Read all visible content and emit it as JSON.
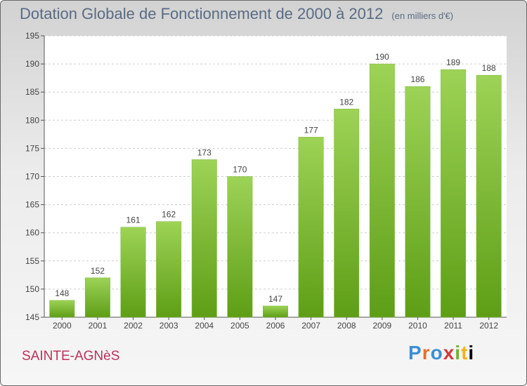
{
  "header": {
    "title": "Dotation Globale de Fonctionnement de 2000 à 2012",
    "subtitle": "(en milliers d'€)"
  },
  "footer": {
    "commune": "SAINTE-AGNèS",
    "brand": [
      "P",
      "r",
      "o",
      "x",
      "i",
      "t",
      "i"
    ]
  },
  "colors": {
    "bar_top": "#9dd356",
    "bar_bottom": "#5e9e16",
    "grid": "#cfcfcf",
    "axis_text": "#444444",
    "title": "#5a6b84",
    "commune": "#c0305a"
  },
  "chart_data": {
    "type": "bar",
    "title": "Dotation Globale de Fonctionnement de 2000 à 2012",
    "subtitle": "(en milliers d'€)",
    "categories": [
      "2000",
      "2001",
      "2002",
      "2003",
      "2004",
      "2005",
      "2006",
      "2007",
      "2008",
      "2009",
      "2010",
      "2011",
      "2012"
    ],
    "values": [
      148,
      152,
      161,
      162,
      173,
      170,
      147,
      177,
      182,
      190,
      186,
      189,
      188
    ],
    "ylim": [
      145,
      195
    ],
    "yticks": [
      145,
      150,
      155,
      160,
      165,
      170,
      175,
      180,
      185,
      190,
      195
    ],
    "grid": true,
    "data_labels": true
  }
}
